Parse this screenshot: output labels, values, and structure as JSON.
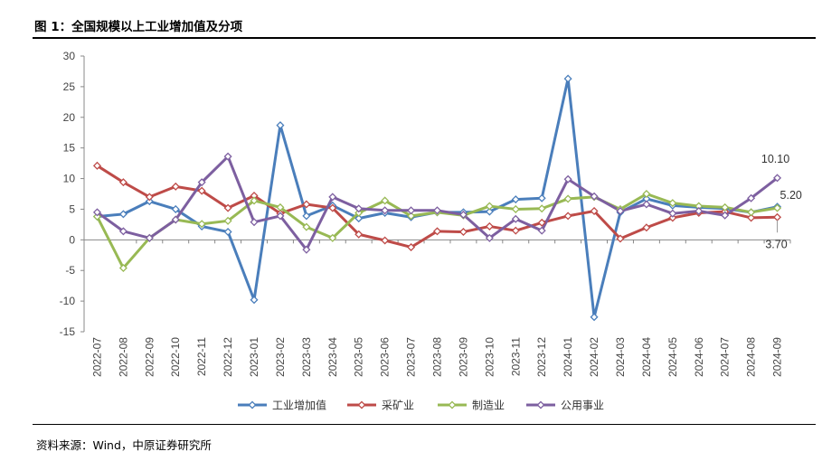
{
  "figure": {
    "title": "图 1：全国规模以上工业增加值及分项",
    "source": "资料来源：Wind，中原证券研究所"
  },
  "chart_data": {
    "type": "line",
    "title": "",
    "xlabel": "",
    "ylabel": "",
    "ylim": [
      -15,
      30
    ],
    "yticks": [
      -15,
      -10,
      -5,
      0,
      5,
      10,
      15,
      20,
      25,
      30
    ],
    "grid": false,
    "legend_position": "bottom",
    "categories": [
      "2022-07",
      "2022-08",
      "2022-09",
      "2022-10",
      "2022-11",
      "2022-12",
      "2023-01",
      "2023-02",
      "2023-03",
      "2023-04",
      "2023-05",
      "2023-06",
      "2023-07",
      "2023-08",
      "2023-09",
      "2023-10",
      "2023-11",
      "2023-12",
      "2024-01",
      "2024-02",
      "2024-03",
      "2024-04",
      "2024-05",
      "2024-06",
      "2024-07",
      "2024-08",
      "2024-09"
    ],
    "series": [
      {
        "name": "工业增加值",
        "color": "#4a7ebb",
        "values": [
          3.8,
          4.2,
          6.3,
          5.0,
          2.2,
          1.3,
          -9.8,
          18.7,
          3.9,
          5.6,
          3.5,
          4.4,
          3.7,
          4.5,
          4.5,
          4.6,
          6.6,
          6.8,
          26.3,
          -12.6,
          4.5,
          6.7,
          5.6,
          5.3,
          5.1,
          4.5,
          5.4
        ]
      },
      {
        "name": "采矿业",
        "color": "#be4b48",
        "values": [
          12.1,
          9.4,
          7.0,
          8.7,
          8.0,
          5.2,
          7.2,
          4.3,
          5.8,
          5.2,
          0.9,
          -0.1,
          -1.2,
          1.4,
          1.3,
          2.2,
          1.5,
          2.8,
          3.9,
          4.7,
          0.2,
          2.0,
          3.6,
          4.4,
          4.6,
          3.6,
          3.7
        ]
      },
      {
        "name": "制造业",
        "color": "#98b954",
        "values": [
          3.8,
          -4.6,
          0.3,
          3.3,
          2.6,
          3.1,
          6.4,
          5.3,
          2.1,
          0.3,
          4.4,
          6.4,
          3.9,
          4.5,
          4.0,
          5.5,
          5.0,
          5.1,
          6.7,
          7.0,
          5.0,
          7.5,
          6.0,
          5.5,
          5.3,
          4.5,
          5.2
        ]
      },
      {
        "name": "公用事业",
        "color": "#7d5fa0",
        "values": [
          4.5,
          1.4,
          0.3,
          3.3,
          9.4,
          13.6,
          2.9,
          3.9,
          -1.6,
          7.0,
          5.1,
          4.8,
          4.8,
          4.8,
          4.1,
          0.3,
          3.4,
          1.5,
          9.9,
          7.1,
          4.7,
          5.8,
          4.3,
          4.7,
          4.0,
          6.8,
          10.1
        ]
      }
    ],
    "annotations": [
      {
        "text": "10.10",
        "series": 3,
        "index": 26,
        "pos": "above"
      },
      {
        "text": "5.20",
        "series": 2,
        "index": 26,
        "pos": "right"
      },
      {
        "text": "3.70",
        "series": 1,
        "index": 26,
        "pos": "below"
      }
    ]
  }
}
